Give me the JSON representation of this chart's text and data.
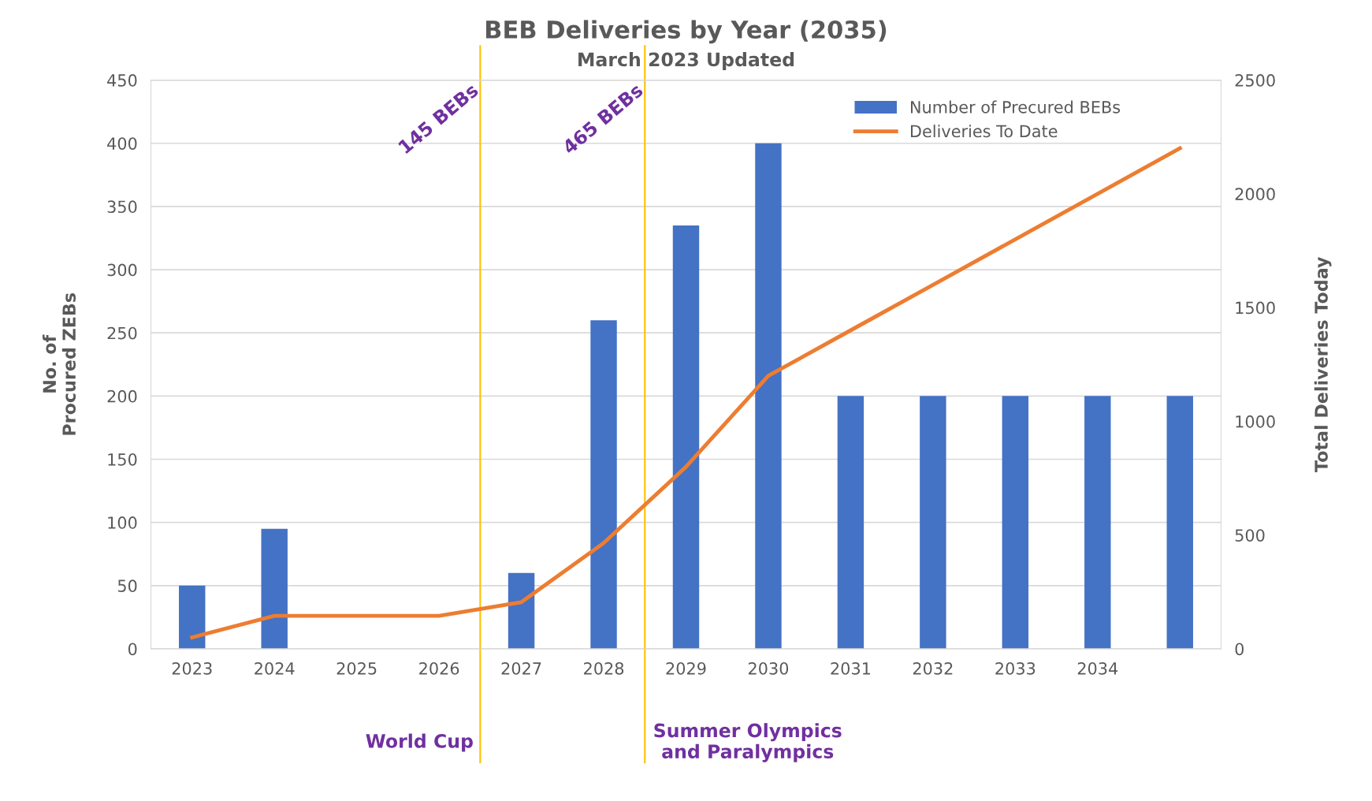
{
  "chart_data": {
    "type": "bar",
    "title": "BEB Deliveries by Year (2035)",
    "subtitle": "March 2023 Updated",
    "ylabel": "No. of\nProcured ZEBs",
    "y2label": "Total Deliveries Today",
    "categories": [
      "2023",
      "2024",
      "2025",
      "2026",
      "2027",
      "2028",
      "2029",
      "2030",
      "2031",
      "2032",
      "2033",
      "2034",
      null
    ],
    "series": [
      {
        "name": "Number of Precured BEBs",
        "type": "bar",
        "color": "#4472c4",
        "values": [
          50,
          95,
          null,
          null,
          60,
          260,
          335,
          400,
          200,
          200,
          200,
          200,
          200
        ]
      },
      {
        "name": "Deliveries To Date",
        "type": "line",
        "axis": "y2",
        "color": "#ed7d31",
        "values": [
          50,
          145,
          145,
          145,
          205,
          465,
          800,
          1200,
          1400,
          1600,
          1800,
          2000,
          2200
        ]
      }
    ],
    "ylim": [
      0,
      450
    ],
    "yticks": [
      0,
      50,
      100,
      150,
      200,
      250,
      300,
      350,
      400,
      450
    ],
    "y2lim": [
      0,
      2500
    ],
    "y2ticks": [
      0,
      500,
      1000,
      1500,
      2000,
      2500
    ],
    "annotations": [
      "145 BEBs",
      "465 BEBs",
      "World Cup",
      "Summer Olympics\nand Paralympics"
    ],
    "grid": "y",
    "legend": "top right",
    "marker": "none",
    "line_style": "solid"
  }
}
